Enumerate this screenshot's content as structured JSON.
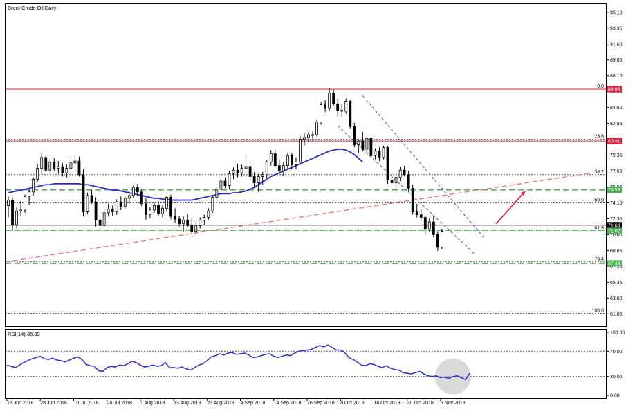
{
  "chart_data": {
    "type": "candlestick",
    "title": "Brent Crude Oil,Daily",
    "price_axis": {
      "ylim": [
        60.5,
        96.0
      ],
      "ticks": [
        "95.10",
        "93.35",
        "91.60",
        "89.85",
        "88.10",
        "86.35",
        "84.60",
        "82.85",
        "81.10",
        "79.35",
        "77.60",
        "75.85",
        "74.10",
        "72.35",
        "70.60",
        "68.85",
        "67.10",
        "65.35",
        "63.60",
        "61.85"
      ]
    },
    "x_axis": {
      "labels": [
        "18 Jun 2018",
        "28 Jun 2018",
        "10 Jul 2018",
        "20 Jul 2018",
        "1 Aug 2018",
        "13 Aug 2018",
        "23 Aug 2018",
        "4 Sep 2018",
        "14 Sep 2018",
        "26 Sep 2018",
        "8 Oct 2018",
        "18 Oct 2018",
        "30 Oct 2018",
        "9 Nov 2018"
      ]
    },
    "candles": [
      {
        "o": 73.8,
        "h": 74.8,
        "l": 72.5,
        "c": 74.4
      },
      {
        "o": 74.4,
        "h": 74.7,
        "l": 71.0,
        "c": 71.7
      },
      {
        "o": 71.7,
        "h": 73.6,
        "l": 71.3,
        "c": 73.2
      },
      {
        "o": 73.2,
        "h": 74.3,
        "l": 72.6,
        "c": 73.3
      },
      {
        "o": 73.3,
        "h": 75.0,
        "l": 73.0,
        "c": 74.8
      },
      {
        "o": 74.8,
        "h": 75.6,
        "l": 73.9,
        "c": 75.3
      },
      {
        "o": 75.3,
        "h": 76.9,
        "l": 74.9,
        "c": 76.7
      },
      {
        "o": 76.7,
        "h": 78.4,
        "l": 76.4,
        "c": 77.9
      },
      {
        "o": 77.9,
        "h": 79.6,
        "l": 77.2,
        "c": 79.1
      },
      {
        "o": 79.1,
        "h": 79.4,
        "l": 77.5,
        "c": 77.7
      },
      {
        "o": 77.7,
        "h": 78.9,
        "l": 77.3,
        "c": 78.6
      },
      {
        "o": 78.6,
        "h": 79.0,
        "l": 77.6,
        "c": 77.9
      },
      {
        "o": 77.9,
        "h": 78.7,
        "l": 77.3,
        "c": 78.1
      },
      {
        "o": 78.1,
        "h": 78.5,
        "l": 77.0,
        "c": 77.4
      },
      {
        "o": 77.4,
        "h": 78.3,
        "l": 76.9,
        "c": 77.9
      },
      {
        "o": 77.9,
        "h": 78.9,
        "l": 77.4,
        "c": 78.5
      },
      {
        "o": 78.5,
        "h": 79.3,
        "l": 77.9,
        "c": 78.7
      },
      {
        "o": 78.7,
        "h": 79.2,
        "l": 77.0,
        "c": 77.2
      },
      {
        "o": 77.2,
        "h": 77.8,
        "l": 72.6,
        "c": 73.1
      },
      {
        "o": 73.1,
        "h": 75.2,
        "l": 72.9,
        "c": 74.9
      },
      {
        "o": 74.9,
        "h": 75.5,
        "l": 74.0,
        "c": 74.2
      },
      {
        "o": 74.2,
        "h": 74.7,
        "l": 71.5,
        "c": 72.2
      },
      {
        "o": 72.2,
        "h": 72.8,
        "l": 71.2,
        "c": 71.6
      },
      {
        "o": 71.6,
        "h": 73.4,
        "l": 71.4,
        "c": 73.0
      },
      {
        "o": 73.0,
        "h": 74.0,
        "l": 72.6,
        "c": 73.4
      },
      {
        "o": 73.4,
        "h": 73.8,
        "l": 72.7,
        "c": 73.1
      },
      {
        "o": 73.1,
        "h": 74.5,
        "l": 72.8,
        "c": 74.2
      },
      {
        "o": 74.2,
        "h": 74.8,
        "l": 73.3,
        "c": 73.7
      },
      {
        "o": 73.7,
        "h": 74.9,
        "l": 73.4,
        "c": 74.6
      },
      {
        "o": 74.6,
        "h": 75.3,
        "l": 74.0,
        "c": 74.9
      },
      {
        "o": 74.9,
        "h": 76.0,
        "l": 74.6,
        "c": 75.8
      },
      {
        "o": 75.8,
        "h": 76.2,
        "l": 74.9,
        "c": 75.3
      },
      {
        "o": 75.3,
        "h": 75.6,
        "l": 73.7,
        "c": 74.0
      },
      {
        "o": 74.0,
        "h": 74.6,
        "l": 72.2,
        "c": 72.8
      },
      {
        "o": 72.8,
        "h": 73.6,
        "l": 72.4,
        "c": 73.3
      },
      {
        "o": 73.3,
        "h": 74.1,
        "l": 73.0,
        "c": 73.8
      },
      {
        "o": 73.8,
        "h": 74.3,
        "l": 72.6,
        "c": 72.9
      },
      {
        "o": 72.9,
        "h": 73.9,
        "l": 72.5,
        "c": 73.5
      },
      {
        "o": 73.5,
        "h": 74.9,
        "l": 73.1,
        "c": 74.7
      },
      {
        "o": 74.7,
        "h": 75.0,
        "l": 72.3,
        "c": 72.6
      },
      {
        "o": 72.6,
        "h": 73.5,
        "l": 71.9,
        "c": 72.3
      },
      {
        "o": 72.3,
        "h": 72.7,
        "l": 71.5,
        "c": 71.8
      },
      {
        "o": 71.8,
        "h": 72.6,
        "l": 70.9,
        "c": 72.2
      },
      {
        "o": 72.2,
        "h": 72.9,
        "l": 71.4,
        "c": 71.6
      },
      {
        "o": 71.6,
        "h": 72.3,
        "l": 70.6,
        "c": 70.9
      },
      {
        "o": 70.9,
        "h": 71.9,
        "l": 70.7,
        "c": 71.6
      },
      {
        "o": 71.6,
        "h": 72.5,
        "l": 71.3,
        "c": 72.2
      },
      {
        "o": 72.2,
        "h": 72.8,
        "l": 71.7,
        "c": 72.5
      },
      {
        "o": 72.5,
        "h": 73.5,
        "l": 72.2,
        "c": 73.2
      },
      {
        "o": 73.2,
        "h": 74.9,
        "l": 73.0,
        "c": 74.7
      },
      {
        "o": 74.7,
        "h": 75.9,
        "l": 74.3,
        "c": 75.6
      },
      {
        "o": 75.6,
        "h": 76.8,
        "l": 75.2,
        "c": 76.5
      },
      {
        "o": 76.5,
        "h": 76.9,
        "l": 75.7,
        "c": 76.0
      },
      {
        "o": 76.0,
        "h": 77.6,
        "l": 75.6,
        "c": 77.3
      },
      {
        "o": 77.3,
        "h": 78.0,
        "l": 76.7,
        "c": 77.7
      },
      {
        "o": 77.7,
        "h": 78.4,
        "l": 76.9,
        "c": 77.4
      },
      {
        "o": 77.4,
        "h": 78.3,
        "l": 77.0,
        "c": 77.9
      },
      {
        "o": 77.9,
        "h": 79.3,
        "l": 77.5,
        "c": 78.1
      },
      {
        "o": 78.1,
        "h": 78.5,
        "l": 76.6,
        "c": 77.0
      },
      {
        "o": 77.0,
        "h": 77.5,
        "l": 75.8,
        "c": 76.3
      },
      {
        "o": 76.3,
        "h": 77.3,
        "l": 75.3,
        "c": 77.0
      },
      {
        "o": 77.0,
        "h": 77.5,
        "l": 76.1,
        "c": 77.2
      },
      {
        "o": 77.2,
        "h": 78.8,
        "l": 76.8,
        "c": 78.6
      },
      {
        "o": 78.6,
        "h": 79.9,
        "l": 78.2,
        "c": 79.5
      },
      {
        "o": 79.5,
        "h": 80.0,
        "l": 78.0,
        "c": 78.2
      },
      {
        "o": 78.2,
        "h": 78.9,
        "l": 77.3,
        "c": 77.6
      },
      {
        "o": 77.6,
        "h": 78.6,
        "l": 77.1,
        "c": 78.2
      },
      {
        "o": 78.2,
        "h": 79.6,
        "l": 77.8,
        "c": 79.3
      },
      {
        "o": 79.3,
        "h": 79.6,
        "l": 77.8,
        "c": 78.3
      },
      {
        "o": 78.3,
        "h": 79.1,
        "l": 77.8,
        "c": 78.6
      },
      {
        "o": 78.6,
        "h": 81.5,
        "l": 78.3,
        "c": 81.1
      },
      {
        "o": 81.1,
        "h": 81.8,
        "l": 80.4,
        "c": 81.3
      },
      {
        "o": 81.3,
        "h": 81.9,
        "l": 80.8,
        "c": 81.6
      },
      {
        "o": 81.6,
        "h": 82.0,
        "l": 80.9,
        "c": 81.6
      },
      {
        "o": 81.6,
        "h": 83.3,
        "l": 81.4,
        "c": 83.0
      },
      {
        "o": 83.0,
        "h": 85.2,
        "l": 82.7,
        "c": 84.9
      },
      {
        "o": 84.9,
        "h": 85.4,
        "l": 84.1,
        "c": 84.5
      },
      {
        "o": 84.5,
        "h": 86.7,
        "l": 84.2,
        "c": 86.2
      },
      {
        "o": 86.2,
        "h": 86.6,
        "l": 84.8,
        "c": 85.0
      },
      {
        "o": 85.0,
        "h": 85.6,
        "l": 83.6,
        "c": 84.3
      },
      {
        "o": 84.3,
        "h": 85.0,
        "l": 83.6,
        "c": 84.2
      },
      {
        "o": 84.2,
        "h": 85.6,
        "l": 83.9,
        "c": 85.3
      },
      {
        "o": 85.3,
        "h": 85.5,
        "l": 82.3,
        "c": 82.5
      },
      {
        "o": 82.5,
        "h": 82.9,
        "l": 80.2,
        "c": 80.5
      },
      {
        "o": 80.5,
        "h": 81.1,
        "l": 79.6,
        "c": 80.9
      },
      {
        "o": 80.9,
        "h": 81.9,
        "l": 79.8,
        "c": 80.0
      },
      {
        "o": 80.0,
        "h": 81.4,
        "l": 79.6,
        "c": 81.2
      },
      {
        "o": 81.2,
        "h": 81.6,
        "l": 79.0,
        "c": 79.3
      },
      {
        "o": 79.3,
        "h": 80.1,
        "l": 78.9,
        "c": 79.8
      },
      {
        "o": 79.8,
        "h": 80.2,
        "l": 78.7,
        "c": 79.1
      },
      {
        "o": 79.1,
        "h": 80.4,
        "l": 78.9,
        "c": 80.2
      },
      {
        "o": 80.2,
        "h": 80.4,
        "l": 76.2,
        "c": 76.6
      },
      {
        "o": 76.6,
        "h": 77.2,
        "l": 75.8,
        "c": 76.3
      },
      {
        "o": 76.3,
        "h": 77.4,
        "l": 75.7,
        "c": 76.9
      },
      {
        "o": 76.9,
        "h": 78.1,
        "l": 76.5,
        "c": 77.7
      },
      {
        "o": 77.7,
        "h": 78.2,
        "l": 77.0,
        "c": 77.2
      },
      {
        "o": 77.2,
        "h": 77.6,
        "l": 75.3,
        "c": 75.7
      },
      {
        "o": 75.7,
        "h": 76.1,
        "l": 72.8,
        "c": 73.1
      },
      {
        "o": 73.1,
        "h": 74.0,
        "l": 72.5,
        "c": 72.8
      },
      {
        "o": 72.8,
        "h": 73.4,
        "l": 72.1,
        "c": 72.5
      },
      {
        "o": 72.5,
        "h": 72.7,
        "l": 70.6,
        "c": 71.2
      },
      {
        "o": 71.2,
        "h": 72.4,
        "l": 70.9,
        "c": 72.0
      },
      {
        "o": 72.0,
        "h": 72.6,
        "l": 70.3,
        "c": 70.6
      },
      {
        "o": 70.6,
        "h": 70.9,
        "l": 68.8,
        "c": 69.2
      },
      {
        "o": 69.2,
        "h": 71.2,
        "l": 69.0,
        "c": 70.9
      }
    ],
    "moving_average": [
      75.2,
      75.3,
      75.4,
      75.5,
      75.6,
      75.7,
      75.8,
      75.9,
      76.0,
      76.1,
      76.1,
      76.2,
      76.2,
      76.2,
      76.2,
      76.2,
      76.2,
      76.2,
      76.1,
      76.1,
      76.0,
      75.9,
      75.8,
      75.7,
      75.6,
      75.5,
      75.5,
      75.4,
      75.3,
      75.2,
      75.1,
      75.0,
      74.9,
      74.8,
      74.7,
      74.6,
      74.6,
      74.5,
      74.5,
      74.4,
      74.4,
      74.4,
      74.4,
      74.4,
      74.4,
      74.5,
      74.6,
      74.7,
      74.8,
      74.9,
      75.0,
      75.1,
      75.1,
      75.1,
      75.2,
      75.2,
      75.3,
      75.4,
      75.6,
      75.8,
      76.1,
      76.4,
      76.7,
      77.0,
      77.2,
      77.4,
      77.6,
      77.8,
      78.0,
      78.2,
      78.4,
      78.6,
      78.8,
      79.0,
      79.2,
      79.4,
      79.6,
      79.8,
      79.9,
      80.0,
      80.0,
      79.9,
      79.7,
      79.4,
      79.0,
      78.6
    ],
    "fibonacci": [
      {
        "label": "0.0",
        "price": 86.63
      },
      {
        "label": "23.6",
        "price": 81.1
      },
      {
        "label": "38.2",
        "price": 77.2
      },
      {
        "label": "50.0",
        "price": 74.1
      },
      {
        "label": "61.8",
        "price": 71.0
      },
      {
        "label": "76.4",
        "price": 67.6
      },
      {
        "label": "100.0",
        "price": 61.9
      }
    ],
    "levels": [
      {
        "label": "86.63",
        "price": 86.63,
        "color": "#e0203a",
        "style": "solid-red"
      },
      {
        "label": "80.91",
        "price": 80.91,
        "color": "#e0203a",
        "style": "solid-red"
      },
      {
        "label": "75.53",
        "price": 75.53,
        "color": "#4caf50",
        "style": "dash-green"
      },
      {
        "label": "71.64",
        "price": 71.64,
        "color": "#000000",
        "style": "solid-black"
      },
      {
        "label": "71.02",
        "price": 71.02,
        "color": "#4caf50",
        "style": "dash-green"
      },
      {
        "label": "67.44",
        "price": 67.44,
        "color": "#4caf50",
        "style": "dash-green"
      }
    ],
    "trendline": {
      "x": [
        0,
        140
      ],
      "y": [
        67.6,
        77.4
      ],
      "color": "#f07070"
    },
    "channel": {
      "upper": {
        "x": [
          85,
          114
        ],
        "y": [
          85.9,
          70.3
        ]
      },
      "lower": {
        "x": [
          79,
          112
        ],
        "y": [
          82.6,
          68.4
        ]
      }
    },
    "arrow": {
      "x": [
        117,
        124
      ],
      "y": [
        71.8,
        75.4
      ],
      "color": "#e0203a"
    },
    "rsi": {
      "label": "RSI(14) 35.09",
      "ylim": [
        0,
        100
      ],
      "ticks": [
        "100.00",
        "70.00",
        "30.00",
        "0.00"
      ],
      "levels": [
        70,
        30
      ],
      "values": [
        48,
        46,
        44,
        48,
        52,
        55,
        58,
        60,
        62,
        58,
        57,
        59,
        56,
        55,
        53,
        56,
        59,
        61,
        57,
        49,
        47,
        46,
        39,
        38,
        44,
        46,
        45,
        48,
        47,
        50,
        54,
        52,
        48,
        45,
        46,
        48,
        46,
        47,
        52,
        44,
        44,
        43,
        45,
        42,
        40,
        44,
        48,
        50,
        55,
        61,
        63,
        66,
        64,
        67,
        68,
        65,
        66,
        67,
        64,
        60,
        61,
        63,
        65,
        66,
        62,
        60,
        62,
        64,
        63,
        67,
        70,
        71,
        72,
        73,
        76,
        79,
        77,
        80,
        76,
        72,
        72,
        68,
        60,
        57,
        53,
        48,
        47,
        50,
        49,
        46,
        44,
        47,
        43,
        41,
        40,
        36,
        35,
        34,
        36,
        38,
        34,
        31,
        30,
        31,
        28,
        29,
        27,
        30,
        31,
        28,
        25,
        35
      ],
      "highlight": "#bbbbbb"
    }
  }
}
